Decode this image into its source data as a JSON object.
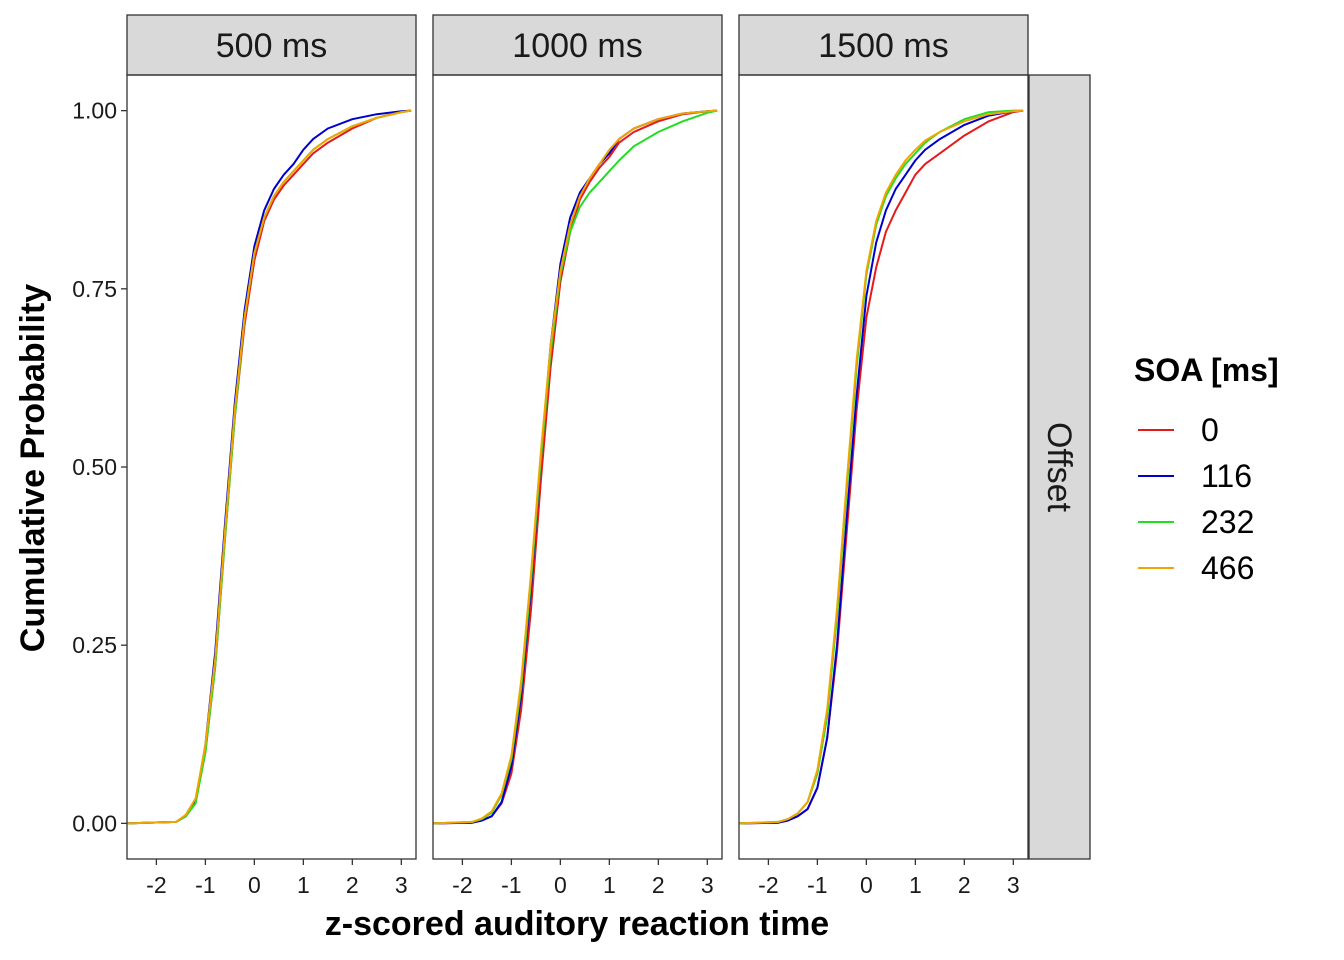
{
  "chart_data": {
    "type": "line",
    "xlabel": "z-scored auditory reaction time",
    "ylabel": "Cumulative Probability",
    "xlim": [
      -2.6,
      3.3
    ],
    "ylim": [
      -0.05,
      1.05
    ],
    "x_ticks": [
      -2,
      -1,
      0,
      1,
      2,
      3
    ],
    "x_tick_labels": [
      "-2",
      "-1",
      "0",
      "1",
      "2",
      "3"
    ],
    "y_ticks": [
      0,
      0.25,
      0.5,
      0.75,
      1
    ],
    "y_tick_labels": [
      "0.00",
      "0.25",
      "0.50",
      "0.75",
      "1.00"
    ],
    "grid": false,
    "row_strip": "Offset",
    "legend": {
      "title": "SOA [ms]",
      "placement": "right",
      "entries": [
        {
          "label": "0",
          "color": "#e41a1c"
        },
        {
          "label": "116",
          "color": "#0000cc"
        },
        {
          "label": "232",
          "color": "#22dd22"
        },
        {
          "label": "466",
          "color": "#f0a500"
        }
      ]
    },
    "panels": [
      {
        "strip": "500 ms",
        "series": [
          {
            "soa": "0",
            "x": [
              -2.6,
              -1.6,
              -1.4,
              -1.2,
              -1.0,
              -0.8,
              -0.6,
              -0.4,
              -0.2,
              0.0,
              0.2,
              0.4,
              0.6,
              0.8,
              1.0,
              1.2,
              1.5,
              2.0,
              2.5,
              3.0,
              3.2
            ],
            "y": [
              0.0,
              0.002,
              0.01,
              0.03,
              0.1,
              0.22,
              0.4,
              0.57,
              0.7,
              0.79,
              0.845,
              0.875,
              0.895,
              0.91,
              0.925,
              0.94,
              0.955,
              0.975,
              0.99,
              0.998,
              1.0
            ]
          },
          {
            "soa": "116",
            "x": [
              -2.6,
              -1.6,
              -1.4,
              -1.2,
              -1.0,
              -0.8,
              -0.6,
              -0.4,
              -0.2,
              0.0,
              0.2,
              0.4,
              0.6,
              0.8,
              1.0,
              1.2,
              1.5,
              2.0,
              2.5,
              3.0,
              3.2
            ],
            "y": [
              0.0,
              0.002,
              0.01,
              0.03,
              0.11,
              0.24,
              0.42,
              0.59,
              0.72,
              0.81,
              0.86,
              0.89,
              0.91,
              0.925,
              0.945,
              0.96,
              0.975,
              0.988,
              0.995,
              0.999,
              1.0
            ]
          },
          {
            "soa": "232",
            "x": [
              -2.6,
              -1.6,
              -1.4,
              -1.2,
              -1.0,
              -0.8,
              -0.6,
              -0.4,
              -0.2,
              0.0,
              0.2,
              0.4,
              0.6,
              0.8,
              1.0,
              1.2,
              1.5,
              2.0,
              2.5,
              3.0,
              3.2
            ],
            "y": [
              0.0,
              0.002,
              0.01,
              0.028,
              0.1,
              0.22,
              0.4,
              0.57,
              0.71,
              0.8,
              0.85,
              0.88,
              0.9,
              0.915,
              0.93,
              0.945,
              0.96,
              0.978,
              0.99,
              0.998,
              1.0
            ]
          },
          {
            "soa": "466",
            "x": [
              -2.6,
              -1.6,
              -1.4,
              -1.2,
              -1.0,
              -0.8,
              -0.6,
              -0.4,
              -0.2,
              0.0,
              0.2,
              0.4,
              0.6,
              0.8,
              1.0,
              1.2,
              1.5,
              2.0,
              2.5,
              3.0,
              3.2
            ],
            "y": [
              0.0,
              0.002,
              0.012,
              0.035,
              0.11,
              0.23,
              0.41,
              0.58,
              0.71,
              0.8,
              0.85,
              0.88,
              0.9,
              0.915,
              0.93,
              0.945,
              0.96,
              0.978,
              0.99,
              0.998,
              1.0
            ]
          }
        ]
      },
      {
        "strip": "1000 ms",
        "series": [
          {
            "soa": "0",
            "x": [
              -2.6,
              -1.8,
              -1.6,
              -1.4,
              -1.2,
              -1.0,
              -0.8,
              -0.6,
              -0.4,
              -0.2,
              0.0,
              0.2,
              0.4,
              0.6,
              0.8,
              1.0,
              1.2,
              1.5,
              2.0,
              2.5,
              3.0,
              3.2
            ],
            "y": [
              0.0,
              0.001,
              0.004,
              0.01,
              0.028,
              0.07,
              0.16,
              0.3,
              0.48,
              0.64,
              0.76,
              0.83,
              0.875,
              0.9,
              0.92,
              0.935,
              0.955,
              0.97,
              0.985,
              0.995,
              0.999,
              1.0
            ]
          },
          {
            "soa": "116",
            "x": [
              -2.6,
              -1.8,
              -1.6,
              -1.4,
              -1.2,
              -1.0,
              -0.8,
              -0.6,
              -0.4,
              -0.2,
              0.0,
              0.2,
              0.4,
              0.6,
              0.8,
              1.0,
              1.2,
              1.5,
              2.0,
              2.5,
              3.0,
              3.2
            ],
            "y": [
              0.0,
              0.001,
              0.004,
              0.01,
              0.03,
              0.08,
              0.18,
              0.33,
              0.51,
              0.67,
              0.785,
              0.85,
              0.885,
              0.905,
              0.925,
              0.94,
              0.96,
              0.975,
              0.988,
              0.996,
              0.999,
              1.0
            ]
          },
          {
            "soa": "232",
            "x": [
              -2.6,
              -1.8,
              -1.6,
              -1.4,
              -1.2,
              -1.0,
              -0.8,
              -0.6,
              -0.4,
              -0.2,
              0.0,
              0.2,
              0.4,
              0.6,
              0.8,
              1.0,
              1.2,
              1.5,
              2.0,
              2.5,
              3.0,
              3.2
            ],
            "y": [
              0.0,
              0.002,
              0.006,
              0.015,
              0.04,
              0.09,
              0.19,
              0.34,
              0.51,
              0.66,
              0.77,
              0.83,
              0.865,
              0.885,
              0.9,
              0.915,
              0.93,
              0.95,
              0.97,
              0.985,
              0.997,
              1.0
            ]
          },
          {
            "soa": "466",
            "x": [
              -2.6,
              -1.8,
              -1.6,
              -1.4,
              -1.2,
              -1.0,
              -0.8,
              -0.6,
              -0.4,
              -0.2,
              0.0,
              0.2,
              0.4,
              0.6,
              0.8,
              1.0,
              1.2,
              1.5,
              2.0,
              2.5,
              3.0,
              3.2
            ],
            "y": [
              0.0,
              0.002,
              0.007,
              0.017,
              0.042,
              0.095,
              0.2,
              0.35,
              0.52,
              0.67,
              0.775,
              0.84,
              0.88,
              0.905,
              0.925,
              0.945,
              0.96,
              0.975,
              0.988,
              0.996,
              0.999,
              1.0
            ]
          }
        ]
      },
      {
        "strip": "1500 ms",
        "series": [
          {
            "soa": "0",
            "x": [
              -2.6,
              -1.8,
              -1.6,
              -1.4,
              -1.2,
              -1.0,
              -0.8,
              -0.6,
              -0.4,
              -0.2,
              0.0,
              0.2,
              0.4,
              0.6,
              0.8,
              1.0,
              1.2,
              1.5,
              2.0,
              2.5,
              3.0,
              3.2
            ],
            "y": [
              0.0,
              0.001,
              0.004,
              0.01,
              0.02,
              0.05,
              0.12,
              0.24,
              0.41,
              0.58,
              0.71,
              0.78,
              0.83,
              0.86,
              0.885,
              0.91,
              0.925,
              0.94,
              0.965,
              0.985,
              0.998,
              1.0
            ]
          },
          {
            "soa": "116",
            "x": [
              -2.6,
              -1.8,
              -1.6,
              -1.4,
              -1.2,
              -1.0,
              -0.8,
              -0.6,
              -0.4,
              -0.2,
              0.0,
              0.2,
              0.4,
              0.6,
              0.8,
              1.0,
              1.2,
              1.5,
              2.0,
              2.5,
              3.0,
              3.2
            ],
            "y": [
              0.0,
              0.001,
              0.004,
              0.01,
              0.02,
              0.05,
              0.12,
              0.25,
              0.43,
              0.6,
              0.74,
              0.815,
              0.86,
              0.89,
              0.91,
              0.93,
              0.945,
              0.96,
              0.98,
              0.993,
              0.999,
              1.0
            ]
          },
          {
            "soa": "232",
            "x": [
              -2.6,
              -1.8,
              -1.6,
              -1.4,
              -1.2,
              -1.0,
              -0.8,
              -0.6,
              -0.4,
              -0.2,
              0.0,
              0.2,
              0.4,
              0.6,
              0.8,
              1.0,
              1.2,
              1.5,
              2.0,
              2.5,
              3.0,
              3.2
            ],
            "y": [
              0.0,
              0.002,
              0.006,
              0.014,
              0.03,
              0.07,
              0.15,
              0.29,
              0.47,
              0.64,
              0.77,
              0.84,
              0.88,
              0.905,
              0.925,
              0.94,
              0.955,
              0.97,
              0.988,
              0.998,
              1.0,
              1.0
            ]
          },
          {
            "soa": "466",
            "x": [
              -2.6,
              -1.8,
              -1.6,
              -1.4,
              -1.2,
              -1.0,
              -0.8,
              -0.6,
              -0.4,
              -0.2,
              0.0,
              0.2,
              0.4,
              0.6,
              0.8,
              1.0,
              1.2,
              1.5,
              2.0,
              2.5,
              3.0,
              3.2
            ],
            "y": [
              0.0,
              0.002,
              0.006,
              0.014,
              0.03,
              0.075,
              0.16,
              0.3,
              0.48,
              0.65,
              0.775,
              0.845,
              0.885,
              0.91,
              0.93,
              0.945,
              0.958,
              0.97,
              0.985,
              0.995,
              0.999,
              1.0
            ]
          }
        ]
      }
    ]
  }
}
